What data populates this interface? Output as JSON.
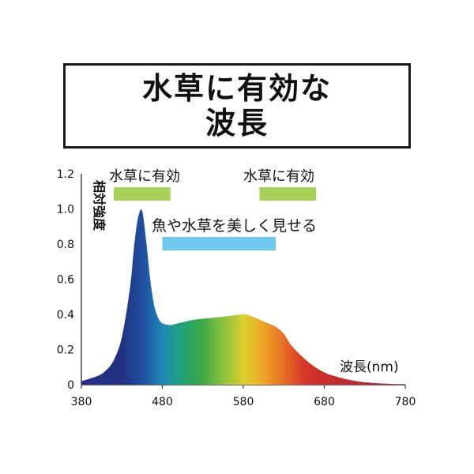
{
  "title": {
    "line1": "水草に有効な",
    "line2": "波長"
  },
  "chart_data": {
    "type": "area",
    "ylabel": "相対強度",
    "xlabel": "波長(nm)",
    "xlim": [
      380,
      780
    ],
    "ylim": [
      0,
      1.2
    ],
    "x_ticks": [
      "380",
      "480",
      "580",
      "680",
      "780"
    ],
    "y_ticks": [
      "0",
      "0.2",
      "0.4",
      "0.6",
      "0.8",
      "1.0",
      "1.2"
    ],
    "series": [
      {
        "x": [
          380,
          400,
          410,
          420,
          430,
          440,
          445,
          450,
          455,
          460,
          465,
          470,
          475,
          480,
          490,
          500,
          520,
          540,
          560,
          580,
          590,
          600,
          610,
          620,
          630,
          640,
          660,
          680,
          700,
          720,
          740,
          760,
          780
        ],
        "values": [
          0.02,
          0.05,
          0.08,
          0.14,
          0.27,
          0.55,
          0.78,
          0.95,
          0.99,
          0.82,
          0.6,
          0.45,
          0.38,
          0.35,
          0.34,
          0.35,
          0.37,
          0.38,
          0.39,
          0.4,
          0.39,
          0.37,
          0.35,
          0.33,
          0.29,
          0.22,
          0.13,
          0.07,
          0.04,
          0.02,
          0.01,
          0.005,
          0.0
        ]
      }
    ],
    "annotations": [
      {
        "label": "水草に有効",
        "range": [
          420,
          490
        ],
        "color": "#a8d15a"
      },
      {
        "label": "水草に有効",
        "range": [
          600,
          670
        ],
        "color": "#a8d15a"
      },
      {
        "label": "魚や水草を美しく見せる",
        "range": [
          480,
          620
        ],
        "color": "#6ec8ee"
      }
    ]
  }
}
